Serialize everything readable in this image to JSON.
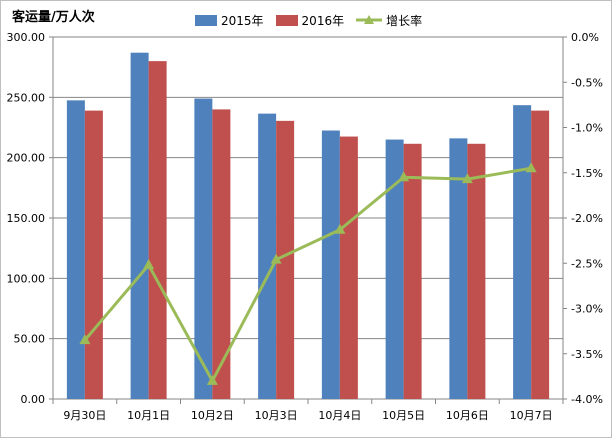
{
  "chart_data": {
    "type": "bar",
    "title": "",
    "ylabel": "客运量/万人次",
    "categories": [
      "9月30日",
      "10月1日",
      "10月2日",
      "10月3日",
      "10月4日",
      "10月5日",
      "10月6日",
      "10月7日"
    ],
    "series": [
      {
        "name": "2015年",
        "type": "bar",
        "axis": "left",
        "color": "#4f81bd",
        "values": [
          247.5,
          287.0,
          249.0,
          236.5,
          222.5,
          215.0,
          216.0,
          243.5
        ]
      },
      {
        "name": "2016年",
        "type": "bar",
        "axis": "left",
        "color": "#c0504d",
        "values": [
          239.0,
          280.0,
          240.0,
          230.5,
          217.5,
          211.5,
          211.5,
          239.0
        ]
      },
      {
        "name": "增长率",
        "type": "line",
        "axis": "right",
        "color": "#9bbb59",
        "marker": "triangle",
        "values": [
          -3.35,
          -2.52,
          -3.8,
          -2.46,
          -2.13,
          -1.55,
          -1.57,
          -1.45
        ]
      }
    ],
    "y_left": {
      "min": 0,
      "max": 300,
      "step": 50,
      "tick_labels": [
        "0.00",
        "50.00",
        "100.00",
        "150.00",
        "200.00",
        "250.00",
        "300.00"
      ]
    },
    "y_right": {
      "min": -4.0,
      "max": 0.0,
      "step": 0.5,
      "tick_labels": [
        "-4.0%",
        "-3.5%",
        "-3.0%",
        "-2.5%",
        "-2.0%",
        "-1.5%",
        "-1.0%",
        "-0.5%",
        "0.0%"
      ]
    },
    "grid": true,
    "legend_position": "top"
  }
}
